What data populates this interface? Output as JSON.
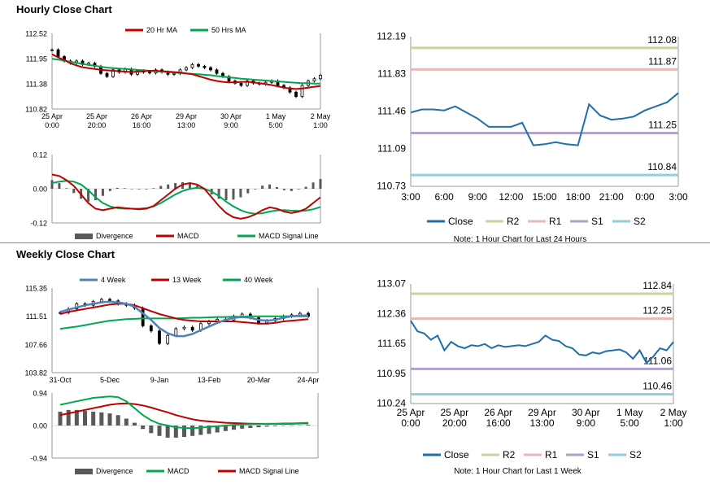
{
  "hourly": {
    "title": "Hourly Close Chart",
    "price_chart": {
      "type": "line",
      "legend": [
        "20 Hr MA",
        "50 Hrs MA"
      ],
      "colors": {
        "ma20": "#c00000",
        "ma50": "#00a651",
        "candle": "#000000"
      },
      "yticks": [
        "112.52",
        "111.95",
        "111.38",
        "110.82"
      ],
      "ylim": [
        110.82,
        112.52
      ],
      "xticks": [
        [
          "25 Apr",
          "0:00"
        ],
        [
          "25 Apr",
          "20:00"
        ],
        [
          "26 Apr",
          "16:00"
        ],
        [
          "29 Apr",
          "13:00"
        ],
        [
          "30 Apr",
          "9:00"
        ],
        [
          "1 May",
          "5:00"
        ],
        [
          "2 May",
          "1:00"
        ]
      ],
      "close": [
        112.15,
        112.0,
        111.9,
        111.85,
        111.9,
        111.82,
        111.85,
        111.78,
        111.62,
        111.55,
        111.7,
        111.65,
        111.72,
        111.6,
        111.68,
        111.65,
        111.63,
        111.7,
        111.65,
        111.6,
        111.62,
        111.7,
        111.75,
        111.82,
        111.78,
        111.75,
        111.7,
        111.62,
        111.55,
        111.45,
        111.4,
        111.35,
        111.45,
        111.4,
        111.38,
        111.42,
        111.45,
        111.35,
        111.3,
        111.2,
        111.1,
        111.35,
        111.45,
        111.5,
        111.58
      ],
      "ma20": [
        112.05,
        111.98,
        111.92,
        111.85,
        111.8,
        111.76,
        111.74,
        111.72,
        111.7,
        111.69,
        111.68,
        111.67,
        111.66,
        111.65,
        111.66,
        111.67,
        111.68,
        111.68,
        111.67,
        111.66,
        111.65,
        111.64,
        111.62,
        111.6,
        111.56,
        111.52,
        111.48,
        111.45,
        111.43,
        111.42,
        111.42,
        111.43,
        111.43,
        111.42,
        111.4,
        111.38,
        111.36,
        111.33,
        111.3,
        111.28,
        111.27,
        111.28,
        111.3,
        111.32,
        111.34
      ],
      "ma50": [
        111.95,
        111.93,
        111.91,
        111.88,
        111.86,
        111.83,
        111.81,
        111.79,
        111.77,
        111.75,
        111.74,
        111.73,
        111.72,
        111.71,
        111.7,
        111.69,
        111.68,
        111.67,
        111.66,
        111.65,
        111.64,
        111.63,
        111.62,
        111.61,
        111.6,
        111.59,
        111.58,
        111.56,
        111.55,
        111.53,
        111.52,
        111.5,
        111.49,
        111.48,
        111.47,
        111.46,
        111.45,
        111.44,
        111.43,
        111.42,
        111.41,
        111.4,
        111.4,
        111.39,
        111.39
      ]
    },
    "macd_chart": {
      "type": "line",
      "legend": [
        "Divergence",
        "MACD",
        "MACD Signal Line"
      ],
      "colors": {
        "divergence": "#595959",
        "macd": "#c00000",
        "signal": "#00a651"
      },
      "yticks": [
        "0.12",
        "0.00",
        "-0.12"
      ],
      "ylim": [
        -0.12,
        0.12
      ],
      "macd": [
        0.05,
        0.045,
        0.03,
        0.01,
        -0.02,
        -0.05,
        -0.07,
        -0.075,
        -0.07,
        -0.065,
        -0.068,
        -0.07,
        -0.072,
        -0.07,
        -0.06,
        -0.04,
        -0.02,
        0.0,
        0.015,
        0.02,
        0.015,
        0.0,
        -0.03,
        -0.06,
        -0.085,
        -0.1,
        -0.105,
        -0.1,
        -0.09,
        -0.075,
        -0.065,
        -0.07,
        -0.08,
        -0.085,
        -0.08,
        -0.07,
        -0.05,
        -0.03
      ],
      "signal": [
        0.02,
        0.025,
        0.028,
        0.025,
        0.015,
        -0.005,
        -0.03,
        -0.05,
        -0.062,
        -0.068,
        -0.07,
        -0.07,
        -0.07,
        -0.068,
        -0.062,
        -0.05,
        -0.035,
        -0.02,
        -0.008,
        0.0,
        0.003,
        0.0,
        -0.01,
        -0.025,
        -0.045,
        -0.062,
        -0.075,
        -0.084,
        -0.088,
        -0.086,
        -0.08,
        -0.076,
        -0.075,
        -0.077,
        -0.078,
        -0.077,
        -0.072,
        -0.064
      ]
    },
    "pivot_chart": {
      "type": "line",
      "yticks": [
        "112.19",
        "111.83",
        "111.46",
        "111.09",
        "110.73"
      ],
      "ylim": [
        110.73,
        112.19
      ],
      "xticks": [
        "3:00",
        "6:00",
        "9:00",
        "12:00",
        "15:00",
        "18:00",
        "21:00",
        "0:00",
        "3:00"
      ],
      "close": [
        111.45,
        111.48,
        111.48,
        111.47,
        111.51,
        111.45,
        111.39,
        111.31,
        111.31,
        111.31,
        111.35,
        111.13,
        111.14,
        111.16,
        111.14,
        111.13,
        111.53,
        111.42,
        111.38,
        111.39,
        111.41,
        111.47,
        111.51,
        111.55,
        111.64
      ],
      "levels": {
        "R2": 112.08,
        "R1": 111.87,
        "S1": 111.25,
        "S2": 110.84
      },
      "level_labels": {
        "R2": "112.08",
        "R1": "111.87",
        "S1": "111.25",
        "S2": "110.84"
      },
      "legend": [
        "Close",
        "R2",
        "R1",
        "S1",
        "S2"
      ],
      "colors": {
        "close": "#1f6fa8",
        "R2": "#c4d79b",
        "R1": "#e6b9b8",
        "S1": "#b3a2c7",
        "S2": "#93cddd"
      },
      "note": "Note: 1 Hour Chart for Last 24 Hours"
    }
  },
  "weekly": {
    "title": "Weekly Close Chart",
    "price_chart": {
      "type": "line",
      "legend": [
        "4 Week",
        "13 Week",
        "40 Week"
      ],
      "colors": {
        "ma4": "#4f81bd",
        "ma13": "#c00000",
        "ma40": "#00a651",
        "candle": "#000000"
      },
      "yticks": [
        "115.35",
        "111.51",
        "107.66",
        "103.82"
      ],
      "ylim": [
        103.82,
        115.35
      ],
      "xticks": [
        "31-Oct",
        "5-Dec",
        "9-Jan",
        "13-Feb",
        "20-Mar",
        "24-Apr"
      ],
      "close": [
        112.0,
        112.5,
        113.2,
        113.0,
        113.5,
        113.8,
        113.6,
        113.2,
        113.0,
        112.6,
        110.2,
        109.5,
        107.8,
        108.9,
        109.8,
        110.0,
        109.6,
        110.5,
        110.8,
        111.1,
        111.0,
        111.5,
        111.8,
        111.3,
        110.6,
        110.9,
        111.2,
        111.5,
        111.7,
        111.9,
        111.5
      ],
      "ma4": [
        112.1,
        112.4,
        112.7,
        113.0,
        113.2,
        113.4,
        113.5,
        113.4,
        113.2,
        112.8,
        111.9,
        111.0,
        109.9,
        109.2,
        108.8,
        108.8,
        109.1,
        109.6,
        110.1,
        110.6,
        111.0,
        111.3,
        111.4,
        111.3,
        111.0,
        110.9,
        111.0,
        111.3,
        111.5,
        111.6,
        111.6
      ],
      "ma13": [
        111.8,
        112.1,
        112.3,
        112.5,
        112.7,
        112.9,
        113.1,
        113.2,
        113.2,
        113.0,
        112.6,
        112.2,
        111.8,
        111.5,
        111.2,
        111.0,
        110.9,
        110.8,
        110.8,
        110.8,
        110.8,
        110.8,
        110.7,
        110.6,
        110.5,
        110.5,
        110.6,
        110.8,
        110.9,
        111.0,
        111.1
      ],
      "ma40": [
        109.8,
        109.95,
        110.1,
        110.3,
        110.5,
        110.7,
        110.9,
        111.0,
        111.1,
        111.15,
        111.2,
        111.2,
        111.2,
        111.2,
        111.2,
        111.25,
        111.3,
        111.3,
        111.35,
        111.4,
        111.4,
        111.45,
        111.45,
        111.5,
        111.5,
        111.5,
        111.5,
        111.5,
        111.5,
        111.5,
        111.5
      ]
    },
    "macd_chart": {
      "type": "line",
      "legend": [
        "Divergence",
        "MACD",
        "MACD Signal Line"
      ],
      "colors": {
        "divergence": "#595959",
        "macd": "#00a651",
        "signal": "#c00000"
      },
      "yticks": [
        "0.94",
        "0.00",
        "-0.94"
      ],
      "ylim": [
        -0.94,
        0.94
      ],
      "macd": [
        0.6,
        0.65,
        0.7,
        0.75,
        0.8,
        0.82,
        0.84,
        0.82,
        0.7,
        0.5,
        0.3,
        0.15,
        0.05,
        0.0,
        -0.05,
        -0.07,
        -0.08,
        -0.06,
        -0.04,
        -0.02,
        0.0,
        0.02,
        0.03,
        0.04,
        0.04,
        0.05,
        0.05,
        0.06,
        0.06,
        0.07,
        0.08
      ],
      "signal": [
        0.3,
        0.35,
        0.4,
        0.45,
        0.5,
        0.55,
        0.6,
        0.63,
        0.64,
        0.62,
        0.58,
        0.52,
        0.45,
        0.38,
        0.3,
        0.24,
        0.18,
        0.14,
        0.12,
        0.1,
        0.08,
        0.07,
        0.06,
        0.055,
        0.05,
        0.05,
        0.05,
        0.05,
        0.05,
        0.06,
        0.06
      ],
      "divergence": [
        0.4,
        0.45,
        0.45,
        0.42,
        0.4,
        0.38,
        0.35,
        0.3,
        0.2,
        0.08,
        -0.1,
        -0.22,
        -0.3,
        -0.35,
        -0.35,
        -0.33,
        -0.3,
        -0.27,
        -0.24,
        -0.2,
        -0.16,
        -0.12,
        -0.09,
        -0.07,
        -0.05,
        -0.03,
        -0.02,
        -0.01,
        0.0,
        0.01,
        0.02
      ]
    },
    "pivot_chart": {
      "type": "line",
      "yticks": [
        "113.07",
        "112.36",
        "111.65",
        "110.95",
        "110.24"
      ],
      "ylim": [
        110.24,
        113.07
      ],
      "xticks": [
        [
          "25 Apr",
          "0:00"
        ],
        [
          "25 Apr",
          "20:00"
        ],
        [
          "26 Apr",
          "16:00"
        ],
        [
          "29 Apr",
          "13:00"
        ],
        [
          "30 Apr",
          "9:00"
        ],
        [
          "1 May",
          "5:00"
        ],
        [
          "2 May",
          "1:00"
        ]
      ],
      "close": [
        112.2,
        111.95,
        111.9,
        111.75,
        111.85,
        111.5,
        111.7,
        111.6,
        111.55,
        111.62,
        111.6,
        111.65,
        111.55,
        111.62,
        111.58,
        111.6,
        111.62,
        111.6,
        111.65,
        111.7,
        111.85,
        111.75,
        111.72,
        111.6,
        111.55,
        111.4,
        111.38,
        111.45,
        111.42,
        111.48,
        111.5,
        111.52,
        111.45,
        111.3,
        111.5,
        111.2,
        111.35,
        111.55,
        111.5,
        111.7
      ],
      "levels": {
        "R2": 112.84,
        "R1": 112.25,
        "S1": 111.06,
        "S2": 110.46
      },
      "level_labels": {
        "R2": "112.84",
        "R1": "112.25",
        "S1": "111.06",
        "S2": "110.46"
      },
      "legend": [
        "Close",
        "R2",
        "R1",
        "S1",
        "S2"
      ],
      "colors": {
        "close": "#1f6fa8",
        "R2": "#c4d79b",
        "R1": "#e6b9b8",
        "S1": "#b3a2c7",
        "S2": "#93cddd"
      },
      "note": "Note: 1 Hour Chart for Last 1 Week"
    }
  }
}
